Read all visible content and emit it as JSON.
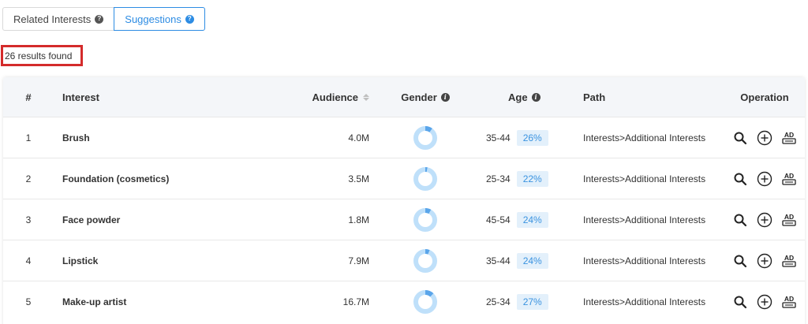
{
  "tabs": [
    {
      "label": "Related Interests",
      "active": false
    },
    {
      "label": "Suggestions",
      "active": true
    }
  ],
  "results_text": "26 results found",
  "table": {
    "headers": {
      "num": "#",
      "interest": "Interest",
      "audience": "Audience",
      "gender": "Gender",
      "age": "Age",
      "path": "Path",
      "operation": "Operation"
    },
    "rows": [
      {
        "num": "1",
        "interest": "Brush",
        "audience": "4.0M",
        "gender_fraction": 0.1,
        "age_range": "35-44",
        "age_pct": "26%",
        "path": "Interests>Additional Interests"
      },
      {
        "num": "2",
        "interest": "Foundation (cosmetics)",
        "audience": "3.5M",
        "gender_fraction": 0.03,
        "age_range": "25-34",
        "age_pct": "22%",
        "path": "Interests>Additional Interests"
      },
      {
        "num": "3",
        "interest": "Face powder",
        "audience": "1.8M",
        "gender_fraction": 0.08,
        "age_range": "45-54",
        "age_pct": "24%",
        "path": "Interests>Additional Interests"
      },
      {
        "num": "4",
        "interest": "Lipstick",
        "audience": "7.9M",
        "gender_fraction": 0.06,
        "age_range": "35-44",
        "age_pct": "24%",
        "path": "Interests>Additional Interests"
      },
      {
        "num": "5",
        "interest": "Make-up artist",
        "audience": "16.7M",
        "gender_fraction": 0.12,
        "age_range": "25-34",
        "age_pct": "27%",
        "path": "Interests>Additional Interests"
      }
    ]
  },
  "colors": {
    "accent": "#2d8ce3",
    "highlight_border": "#d42b2b",
    "donut_light": "#bfe0fa",
    "donut_dark": "#5aa5ea",
    "age_badge_bg": "#e3f0fb"
  },
  "icons": {
    "question": "question-circle-icon",
    "info": "info-circle-icon",
    "sort": "sort-icon",
    "search": "search-icon",
    "add": "add-circle-icon",
    "ad": "ad-icon"
  }
}
